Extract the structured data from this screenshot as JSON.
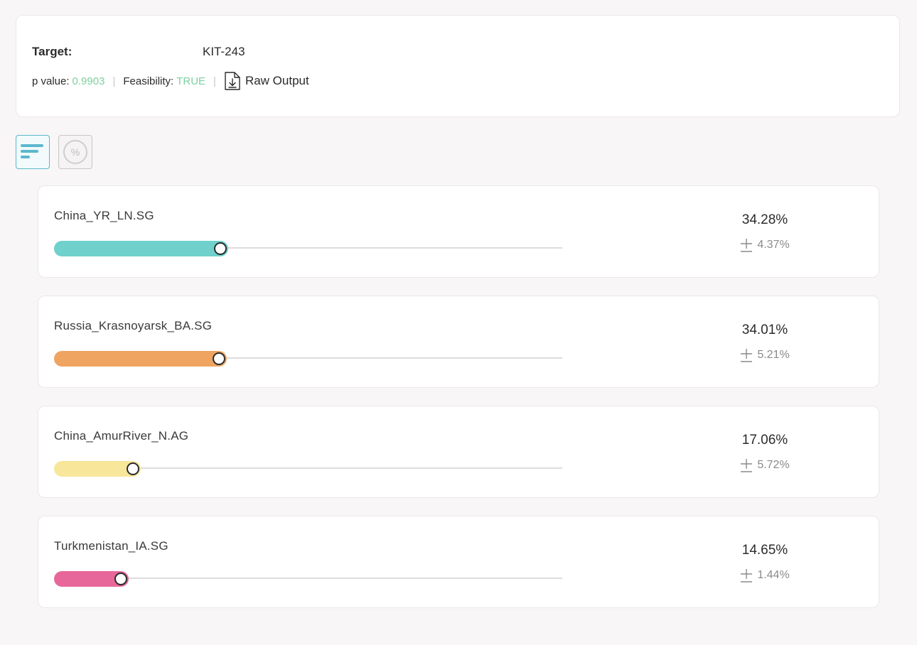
{
  "header": {
    "target_label": "Target:",
    "target_value": "KIT-243",
    "p_value_label": "p value:",
    "p_value": "0.9903",
    "separator": "|",
    "feasibility_label": "Feasibility:",
    "feasibility": "TRUE",
    "raw_output_label": "Raw Output",
    "good_color": "#7fd0a0"
  },
  "view_toggle": {
    "bars_icon": "bar-list-icon",
    "percent_icon": "percent-circle-icon",
    "percent_glyph": "%",
    "active": "bars"
  },
  "populations": [
    {
      "name": "China_YR_LN.SG",
      "percent": "34.28%",
      "error": "4.37%",
      "fraction": 0.3428,
      "color": "#6fd0cc"
    },
    {
      "name": "Russia_Krasnoyarsk_BA.SG",
      "percent": "34.01%",
      "error": "5.21%",
      "fraction": 0.3401,
      "color": "#f0a462"
    },
    {
      "name": "China_AmurRiver_N.AG",
      "percent": "17.06%",
      "error": "5.72%",
      "fraction": 0.1706,
      "color": "#f8e79a"
    },
    {
      "name": "Turkmenistan_IA.SG",
      "percent": "14.65%",
      "error": "1.44%",
      "fraction": 0.1465,
      "color": "#e8679a"
    }
  ]
}
